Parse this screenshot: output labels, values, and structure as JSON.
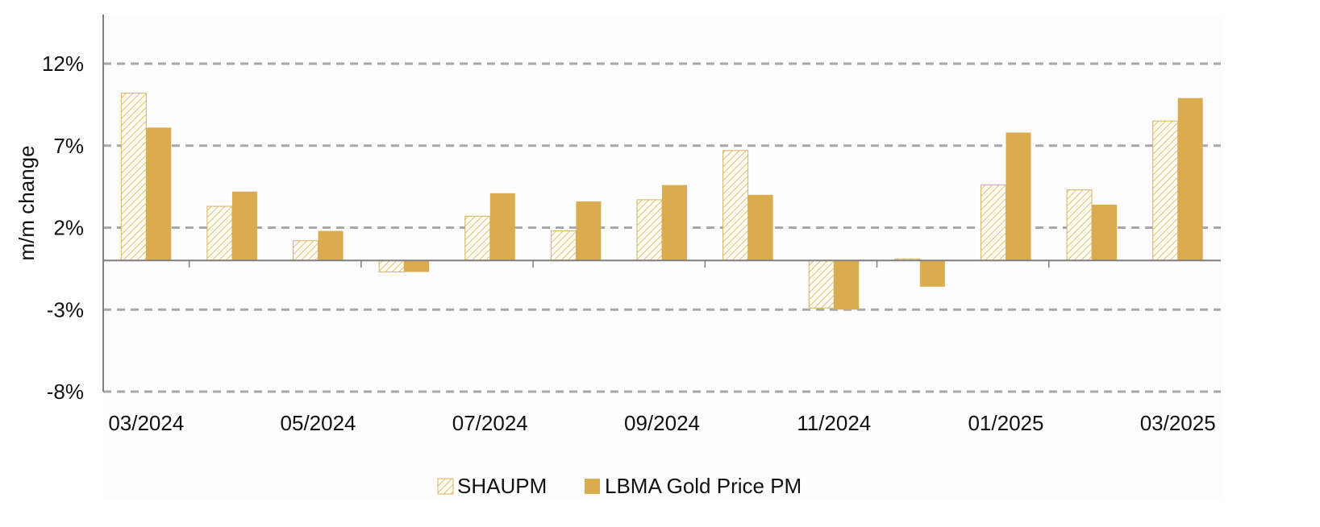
{
  "chart_data": {
    "type": "bar",
    "title": "",
    "xlabel": "",
    "ylabel": "m/m change",
    "categories": [
      "03/2024",
      "04/2024",
      "05/2024",
      "06/2024",
      "07/2024",
      "08/2024",
      "09/2024",
      "10/2024",
      "11/2024",
      "12/2024",
      "01/2025",
      "02/2025",
      "03/2025"
    ],
    "x_tick_labels": [
      "03/2024",
      "05/2024",
      "07/2024",
      "09/2024",
      "11/2024",
      "01/2025",
      "03/2025"
    ],
    "y_ticks": [
      12,
      7,
      2,
      -3,
      -8
    ],
    "y_tick_labels": [
      "12%",
      "7%",
      "2%",
      "-3%",
      "-8%"
    ],
    "ylim": [
      -8,
      15
    ],
    "grid": "horizontal dashed",
    "legend_position": "bottom-center",
    "series": [
      {
        "name": "SHAUPM",
        "pattern": "hatched",
        "values": [
          10.2,
          3.3,
          1.2,
          -0.7,
          2.7,
          1.8,
          3.7,
          6.7,
          -2.9,
          0.1,
          4.6,
          4.3,
          8.5
        ]
      },
      {
        "name": "LBMA Gold Price PM",
        "pattern": "solid",
        "values": [
          8.1,
          4.2,
          1.8,
          -0.7,
          4.1,
          3.6,
          4.6,
          4.0,
          -3.0,
          -1.6,
          7.8,
          3.4,
          9.9
        ]
      }
    ],
    "colors": {
      "bar": "#dbab4f",
      "hatch": "#d5b25b",
      "hatch_bg": "#fffdf3",
      "grid": "#a8a8a8",
      "axis": "#7f7f7f"
    }
  }
}
